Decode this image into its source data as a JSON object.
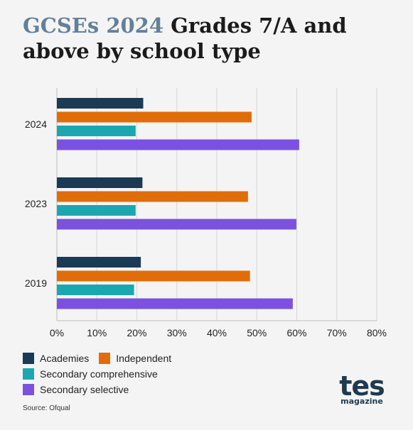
{
  "title": {
    "highlight": "GCSEs 2024",
    "rest": "Grades 7/A and above by school type"
  },
  "source": "Source: Ofqual",
  "logo": {
    "main": "tes",
    "sub": "magazine"
  },
  "chart_data": {
    "type": "bar",
    "orientation": "horizontal",
    "categories": [
      "2024",
      "2023",
      "2019"
    ],
    "series": [
      {
        "name": "Academies",
        "color": "#1a3a55",
        "values": [
          21.6,
          21.4,
          21.0
        ]
      },
      {
        "name": "Independent",
        "color": "#e06d0a",
        "values": [
          48.7,
          47.8,
          48.3
        ]
      },
      {
        "name": "Secondary comprehensive",
        "color": "#1ba7b0",
        "values": [
          19.7,
          19.7,
          19.3
        ]
      },
      {
        "name": "Secondary selective",
        "color": "#7b52e0",
        "values": [
          60.6,
          59.9,
          59.0
        ]
      }
    ],
    "xlim": [
      0,
      80
    ],
    "xticks": [
      "0%",
      "10%",
      "20%",
      "30%",
      "40%",
      "50%",
      "60%",
      "70%",
      "80%"
    ],
    "grid": true,
    "legend_position": "bottom-left"
  }
}
